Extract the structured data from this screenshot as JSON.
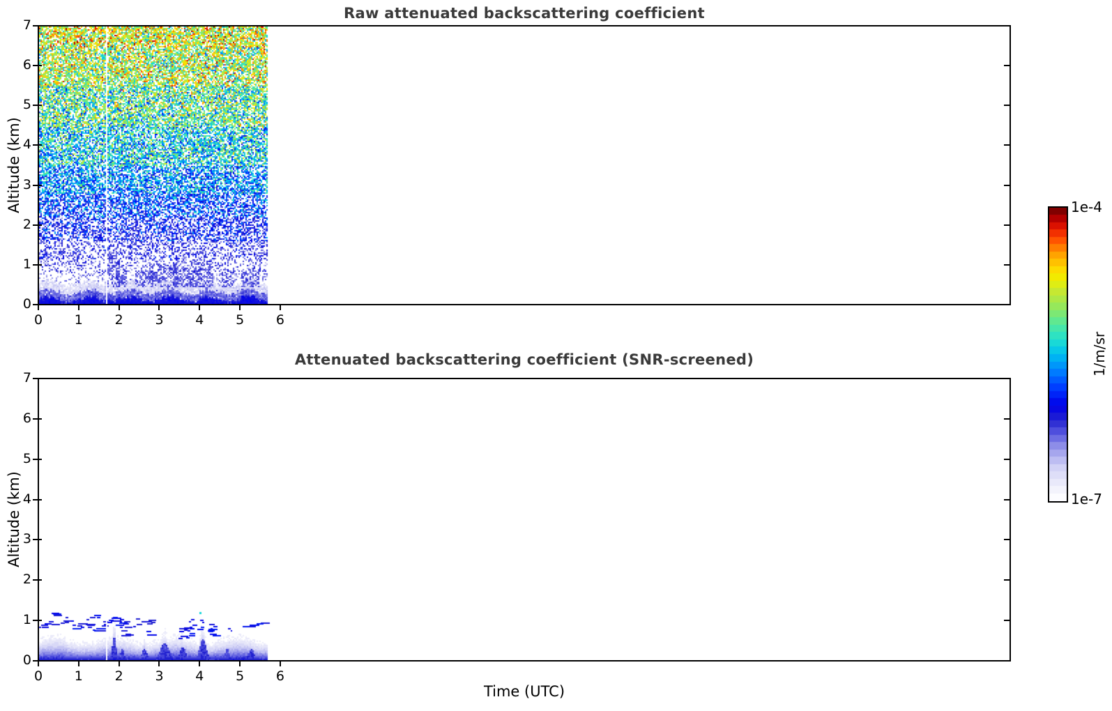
{
  "figure": {
    "background": "#ffffff",
    "title_color": "#3a3a3a",
    "text_color": "#000000"
  },
  "chart_data": [
    {
      "type": "heatmap",
      "title": "Raw attenuated backscattering coefficient",
      "xlabel": "Time (UTC)",
      "ylabel": "Altitude (km)",
      "xlim": [
        0,
        24.1
      ],
      "ylim": [
        0,
        7
      ],
      "x_ticks": [
        0,
        1,
        2,
        3,
        4,
        5,
        6
      ],
      "y_ticks": [
        0,
        1,
        2,
        3,
        4,
        5,
        6,
        7
      ],
      "data_time_range": [
        0,
        5.65
      ],
      "missing_profile_time": 1.66,
      "units": "1/m/sr",
      "scale": "log",
      "altitude_bands": [
        {
          "alt_km": [
            6.5,
            7.01
          ],
          "mean_1_m_sr": 1.5e-05,
          "spread_dex": 0.55,
          "gap_fraction": 0.22
        },
        {
          "alt_km": [
            5.5,
            6.5
          ],
          "mean_1_m_sr": 1.1e-05,
          "spread_dex": 0.55,
          "gap_fraction": 0.25
        },
        {
          "alt_km": [
            4.5,
            5.5
          ],
          "mean_1_m_sr": 6.5e-06,
          "spread_dex": 0.55,
          "gap_fraction": 0.27
        },
        {
          "alt_km": [
            3.5,
            4.5
          ],
          "mean_1_m_sr": 3.8e-06,
          "spread_dex": 0.5,
          "gap_fraction": 0.3
        },
        {
          "alt_km": [
            2.8,
            3.5
          ],
          "mean_1_m_sr": 2.2e-06,
          "spread_dex": 0.45,
          "gap_fraction": 0.33
        },
        {
          "alt_km": [
            2.2,
            2.8
          ],
          "mean_1_m_sr": 1.3e-06,
          "spread_dex": 0.42,
          "gap_fraction": 0.38
        },
        {
          "alt_km": [
            1.6,
            2.2
          ],
          "mean_1_m_sr": 8e-07,
          "spread_dex": 0.35,
          "gap_fraction": 0.46
        },
        {
          "alt_km": [
            1.15,
            1.6
          ],
          "mean_1_m_sr": 5.5e-07,
          "spread_dex": 0.28,
          "gap_fraction": 0.58
        },
        {
          "alt_km": [
            0.8,
            1.15
          ],
          "mean_1_m_sr": 4.5e-07,
          "spread_dex": 0.22,
          "gap_fraction": 0.7
        },
        {
          "alt_km": [
            0.55,
            0.8
          ],
          "mean_1_m_sr": 3.5e-07,
          "spread_dex": 0.18,
          "gap_fraction": 0.78
        },
        {
          "alt_km": [
            0.32,
            0.55
          ],
          "mean_1_m_sr": 1.8e-07,
          "spread_dex": 0.12,
          "gap_fraction": 0.1
        },
        {
          "alt_km": [
            0.14,
            0.32
          ],
          "mean_1_m_sr": 4.2e-07,
          "spread_dex": 0.12,
          "gap_fraction": 0.03
        },
        {
          "alt_km": [
            0.0,
            0.14
          ],
          "mean_1_m_sr": 7.5e-07,
          "spread_dex": 0.08,
          "gap_fraction": 0.0
        }
      ]
    },
    {
      "type": "heatmap",
      "title": "Attenuated backscattering coefficient (SNR-screened)",
      "xlabel": "Time (UTC)",
      "ylabel": "Altitude (km)",
      "xlim": [
        0,
        24.1
      ],
      "ylim": [
        0,
        7
      ],
      "x_ticks": [
        0,
        1,
        2,
        3,
        4,
        5,
        6
      ],
      "y_ticks": [
        0,
        1,
        2,
        3,
        4,
        5,
        6,
        7
      ],
      "data_time_range": [
        0,
        5.65
      ],
      "missing_profile_time": 1.66,
      "units": "1/m/sr",
      "scale": "log",
      "boundary_layer": {
        "mean_top_km": 0.48,
        "top_wobble_km": 0.08,
        "surface_value_1_m_sr": 7.5e-07,
        "top_value_1_m_sr": 1.3e-07
      },
      "plumes": [
        {
          "time": 1.85,
          "top_km": 0.95,
          "width_h": 0.07,
          "core_top_km": 0.6
        },
        {
          "time": 2.05,
          "top_km": 0.5,
          "width_h": 0.06,
          "core_top_km": 0.3
        },
        {
          "time": 2.6,
          "top_km": 0.52,
          "width_h": 0.1,
          "core_top_km": 0.3
        },
        {
          "time": 3.1,
          "top_km": 0.68,
          "width_h": 0.16,
          "core_top_km": 0.45
        },
        {
          "time": 3.55,
          "top_km": 0.58,
          "width_h": 0.1,
          "core_top_km": 0.35
        },
        {
          "time": 4.05,
          "top_km": 0.78,
          "width_h": 0.12,
          "core_top_km": 0.55
        },
        {
          "time": 4.65,
          "top_km": 0.52,
          "width_h": 0.08,
          "core_top_km": 0.3
        },
        {
          "time": 5.25,
          "top_km": 0.55,
          "width_h": 0.1,
          "core_top_km": 0.3
        }
      ],
      "streak_clusters": [
        {
          "time_range": [
            0.02,
            0.7
          ],
          "count": 12,
          "alt_range": [
            0.8,
            1.2
          ]
        },
        {
          "time_range": [
            0.8,
            1.7
          ],
          "count": 14,
          "alt_range": [
            0.75,
            1.15
          ]
        },
        {
          "time_range": [
            1.75,
            2.75
          ],
          "count": 22,
          "alt_range": [
            0.6,
            1.1
          ]
        },
        {
          "time_range": [
            3.3,
            4.4
          ],
          "count": 18,
          "alt_range": [
            0.6,
            1.05
          ]
        },
        {
          "time_range": [
            4.6,
            5.6
          ],
          "count": 6,
          "alt_range": [
            0.7,
            0.95
          ]
        }
      ],
      "isolated_point": {
        "time": 3.98,
        "alt_km": 1.2,
        "value_1_m_sr": 4e-06
      }
    }
  ],
  "colorbar": {
    "max_label": "1e-4",
    "min_label": "1e-7",
    "units_label": "1/m/sr",
    "min": 1e-07,
    "max": 0.0001,
    "scale": "log",
    "levels": 40,
    "stops": [
      {
        "t": 0.0,
        "color": "#fcfcff"
      },
      {
        "t": 0.05,
        "color": "#eaeafa"
      },
      {
        "t": 0.1,
        "color": "#d4d4f6"
      },
      {
        "t": 0.14,
        "color": "#b4b4f0"
      },
      {
        "t": 0.18,
        "color": "#8c8ce8"
      },
      {
        "t": 0.22,
        "color": "#5a5ae0"
      },
      {
        "t": 0.27,
        "color": "#2222d0"
      },
      {
        "t": 0.32,
        "color": "#0000e8"
      },
      {
        "t": 0.38,
        "color": "#0038ff"
      },
      {
        "t": 0.44,
        "color": "#0080ff"
      },
      {
        "t": 0.5,
        "color": "#00c0f0"
      },
      {
        "t": 0.55,
        "color": "#20e0d0"
      },
      {
        "t": 0.6,
        "color": "#50e8a0"
      },
      {
        "t": 0.66,
        "color": "#90e860"
      },
      {
        "t": 0.72,
        "color": "#c8e830"
      },
      {
        "t": 0.76,
        "color": "#eef000"
      },
      {
        "t": 0.8,
        "color": "#ffd800"
      },
      {
        "t": 0.85,
        "color": "#ffa000"
      },
      {
        "t": 0.9,
        "color": "#ff5000"
      },
      {
        "t": 0.94,
        "color": "#e81800"
      },
      {
        "t": 0.97,
        "color": "#bc0000"
      },
      {
        "t": 1.0,
        "color": "#800000"
      }
    ]
  }
}
